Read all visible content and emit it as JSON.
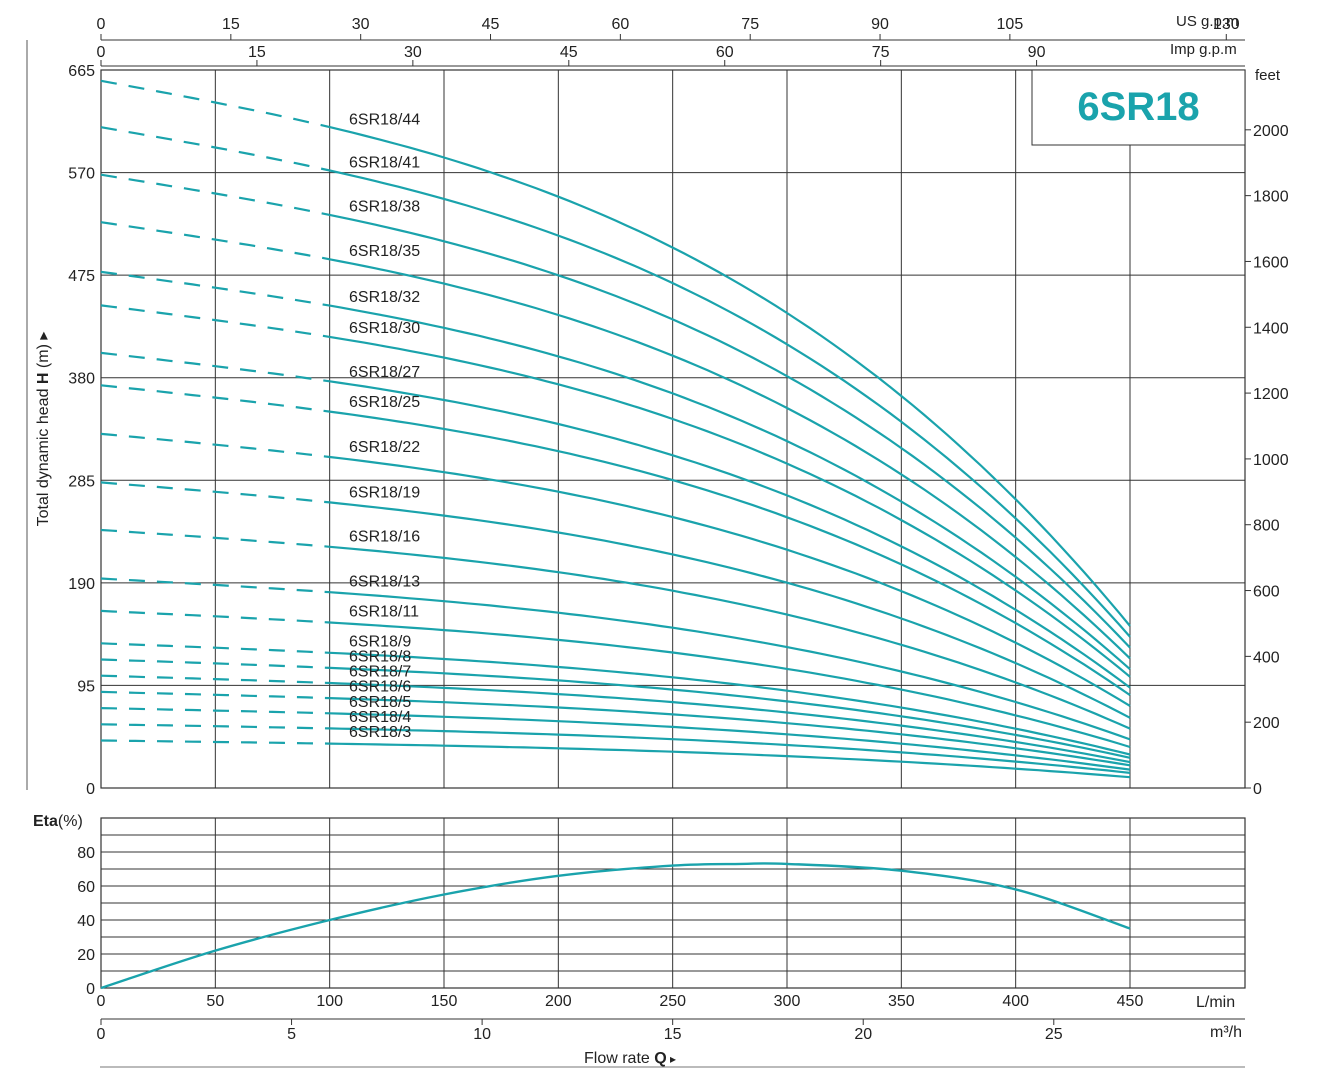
{
  "colors": {
    "curve": "#1aa3ac",
    "grid": "#333333",
    "title": "#1aa3ac"
  },
  "chart_data": [
    {
      "type": "line",
      "title": "6SR18",
      "ylabel_prefix": "Total dynamic head ",
      "ylabel_bold": "H",
      "ylabel_suffix": " (m)",
      "ylim": [
        0,
        665
      ],
      "xlim": [
        0,
        450
      ],
      "x_unit": "L/min",
      "y_ticks": [
        0,
        95,
        190,
        285,
        380,
        475,
        570,
        665
      ],
      "x_ticks": [
        0,
        50,
        100,
        150,
        200,
        250,
        300,
        350,
        400,
        450
      ],
      "feet_unit": "feet",
      "feet_ticks": [
        0,
        200,
        400,
        600,
        800,
        1000,
        1200,
        1400,
        1600,
        1800,
        2000
      ],
      "us_gpm_unit": "US g.p.m",
      "us_gpm_ticks": [
        0,
        15,
        30,
        45,
        60,
        75,
        90,
        105,
        130
      ],
      "imp_gpm_unit": "Imp g.p.m",
      "imp_gpm_ticks": [
        0,
        15,
        30,
        45,
        60,
        75,
        90
      ],
      "dashed_until_x": 100,
      "grid": true,
      "series": [
        {
          "name": "6SR18/44",
          "stages": 44,
          "shutoff": 655,
          "end": 150
        },
        {
          "name": "6SR18/41",
          "stages": 41,
          "shutoff": 612,
          "end": 140
        },
        {
          "name": "6SR18/38",
          "stages": 38,
          "shutoff": 568,
          "end": 130
        },
        {
          "name": "6SR18/35",
          "stages": 35,
          "shutoff": 524,
          "end": 120
        },
        {
          "name": "6SR18/32",
          "stages": 32,
          "shutoff": 478,
          "end": 110
        },
        {
          "name": "6SR18/30",
          "stages": 30,
          "shutoff": 447,
          "end": 103
        },
        {
          "name": "6SR18/27",
          "stages": 27,
          "shutoff": 403,
          "end": 93
        },
        {
          "name": "6SR18/25",
          "stages": 25,
          "shutoff": 373,
          "end": 86
        },
        {
          "name": "6SR18/22",
          "stages": 22,
          "shutoff": 328,
          "end": 76
        },
        {
          "name": "6SR18/19",
          "stages": 19,
          "shutoff": 283,
          "end": 65
        },
        {
          "name": "6SR18/16",
          "stages": 16,
          "shutoff": 239,
          "end": 55
        },
        {
          "name": "6SR18/13",
          "stages": 13,
          "shutoff": 194,
          "end": 45
        },
        {
          "name": "6SR18/11",
          "stages": 11,
          "shutoff": 164,
          "end": 38
        },
        {
          "name": "6SR18/9",
          "stages": 9,
          "shutoff": 134,
          "end": 31
        },
        {
          "name": "6SR18/8",
          "stages": 8,
          "shutoff": 119,
          "end": 28
        },
        {
          "name": "6SR18/7",
          "stages": 7,
          "shutoff": 104,
          "end": 24
        },
        {
          "name": "6SR18/6",
          "stages": 6,
          "shutoff": 89,
          "end": 21
        },
        {
          "name": "6SR18/5",
          "stages": 5,
          "shutoff": 74,
          "end": 17
        },
        {
          "name": "6SR18/4",
          "stages": 4,
          "shutoff": 59,
          "end": 14
        },
        {
          "name": "6SR18/3",
          "stages": 3,
          "shutoff": 44,
          "end": 10
        }
      ]
    },
    {
      "type": "line",
      "ylabel_bold": "Eta",
      "ylabel_suffix": "(%)",
      "ylim": [
        0,
        100
      ],
      "y_ticks": [
        0,
        20,
        40,
        60,
        80
      ],
      "xlim": [
        0,
        450
      ],
      "x_ticks": [
        0,
        50,
        100,
        150,
        200,
        250,
        300,
        350,
        400,
        450
      ],
      "x_unit": "L/min",
      "m3h_unit": "m³/h",
      "m3h_ticks": [
        0,
        5,
        10,
        15,
        20,
        25
      ],
      "xlabel_prefix": "Flow rate  ",
      "xlabel_bold": "Q",
      "grid": true,
      "series": [
        {
          "x": [
            0,
            50,
            100,
            150,
            200,
            250,
            280,
            300,
            350,
            400,
            450
          ],
          "y": [
            0,
            22,
            40,
            55,
            66,
            72,
            73,
            73,
            69,
            58,
            35
          ]
        }
      ]
    }
  ]
}
